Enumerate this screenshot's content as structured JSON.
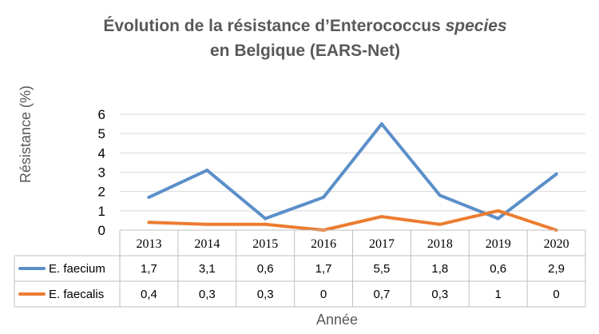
{
  "chart_data": {
    "type": "line",
    "title": {
      "line1_prefix": "Évolution de la résistance d’Enterococcus ",
      "line1_italic": "species",
      "line2": "en Belgique (EARS-Net)"
    },
    "xlabel": "Année",
    "ylabel": "Résistance (%)",
    "ylim": [
      0,
      6
    ],
    "yticks": [
      0,
      1,
      2,
      3,
      4,
      5,
      6
    ],
    "grid": true,
    "legend": "data-table",
    "categories": [
      "2013",
      "2014",
      "2015",
      "2016",
      "2017",
      "2018",
      "2019",
      "2020"
    ],
    "series": [
      {
        "name": "E. faecium",
        "color": "#5b8fc9",
        "values": [
          1.7,
          3.1,
          0.6,
          1.7,
          5.5,
          1.8,
          0.6,
          2.9
        ],
        "labels": [
          "1,7",
          "3,1",
          "0,6",
          "1,7",
          "5,5",
          "1,8",
          "0,6",
          "2,9"
        ]
      },
      {
        "name": "E. faecalis",
        "color": "#ec7c30",
        "values": [
          0.4,
          0.3,
          0.3,
          0,
          0.7,
          0.3,
          1,
          0
        ],
        "labels": [
          "0,4",
          "0,3",
          "0,3",
          "0",
          "0,7",
          "0,3",
          "1",
          "0"
        ]
      }
    ]
  }
}
